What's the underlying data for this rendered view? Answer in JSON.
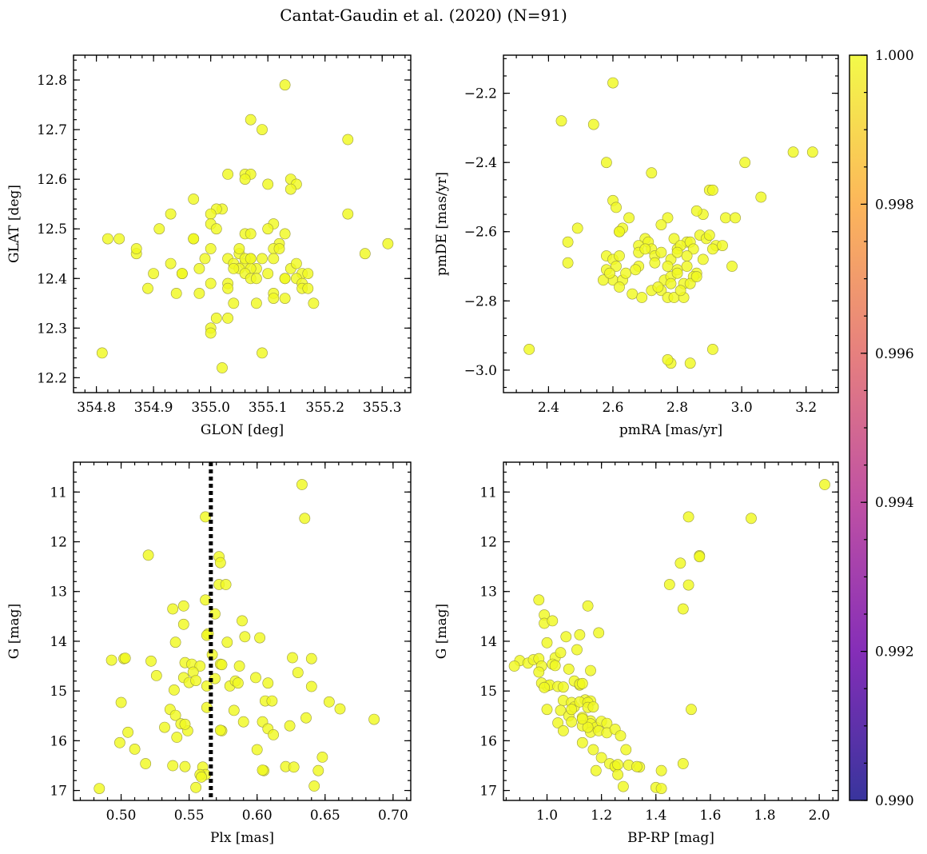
{
  "title": "Cantat-Gaudin et al. (2020) (N=91)",
  "colors": {
    "point": "#f0f921",
    "point_edge": "#9a9a40",
    "vline": "#000000",
    "cmap": [
      "#0d0887",
      "#6a00a8",
      "#b12a90",
      "#e16462",
      "#fca636",
      "#f0f921"
    ]
  },
  "colorbar": {
    "min": 0.99,
    "max": 1.0,
    "ticks": [
      0.99,
      0.992,
      0.994,
      0.996,
      0.998,
      1.0
    ],
    "tick_labels": [
      "0.990",
      "0.992",
      "0.994",
      "0.996",
      "0.998",
      "1.000"
    ]
  },
  "chart_data": [
    {
      "id": "glon-glat",
      "type": "scatter",
      "xlabel": "GLON [deg]",
      "ylabel": "GLAT [deg]",
      "xlim": [
        354.76,
        355.35
      ],
      "ylim": [
        12.17,
        12.85
      ],
      "yinvert": false,
      "xticks": [
        354.8,
        354.9,
        355.0,
        355.1,
        355.2,
        355.3
      ],
      "xtick_labels": [
        "354.8",
        "354.9",
        "355.0",
        "355.1",
        "355.2",
        "355.3"
      ],
      "xminor": 0.02,
      "yticks": [
        12.2,
        12.3,
        12.4,
        12.5,
        12.6,
        12.7,
        12.8
      ],
      "ytick_labels": [
        "12.2",
        "12.3",
        "12.4",
        "12.5",
        "12.6",
        "12.7",
        "12.8"
      ],
      "yminor": 0.02,
      "x": [
        355.13,
        355.07,
        355.09,
        355.24,
        355.03,
        355.06,
        355.07,
        355.06,
        355.1,
        355.14,
        355.15,
        355.14,
        354.97,
        355.02,
        355.01,
        355.0,
        355.24,
        354.93,
        355.11,
        355.13,
        355.0,
        354.91,
        355.06,
        355.07,
        355.01,
        354.97,
        355.12,
        354.82,
        354.84,
        355.31,
        355.0,
        355.11,
        355.12,
        355.05,
        355.27,
        354.87,
        355.07,
        355.11,
        354.87,
        355.03,
        355.06,
        355.04,
        355.08,
        354.93,
        354.98,
        355.05,
        355.07,
        354.9,
        355.06,
        355.1,
        355.07,
        355.14,
        355.16,
        355.17,
        355.15,
        354.95,
        355.08,
        355.13,
        355.03,
        354.89,
        355.16,
        355.0,
        355.03,
        355.16,
        354.94,
        354.98,
        355.11,
        355.18,
        355.08,
        355.04,
        355.11,
        355.01,
        355.03,
        355.0,
        355.09,
        354.81,
        355.0,
        355.02,
        355.09,
        355.06,
        355.13,
        355.07,
        355.1,
        354.97,
        354.95,
        355.15,
        355.05,
        355.13,
        354.99,
        355.04,
        355.17
      ],
      "y": [
        12.79,
        12.72,
        12.7,
        12.68,
        12.61,
        12.61,
        12.61,
        12.6,
        12.59,
        12.6,
        12.59,
        12.58,
        12.56,
        12.54,
        12.54,
        12.53,
        12.53,
        12.53,
        12.51,
        12.49,
        12.51,
        12.5,
        12.49,
        12.49,
        12.5,
        12.48,
        12.47,
        12.48,
        12.48,
        12.47,
        12.46,
        12.46,
        12.46,
        12.45,
        12.45,
        12.45,
        12.44,
        12.44,
        12.46,
        12.44,
        12.43,
        12.43,
        12.42,
        12.43,
        12.42,
        12.42,
        12.42,
        12.41,
        12.41,
        12.41,
        12.4,
        12.42,
        12.41,
        12.41,
        12.4,
        12.41,
        12.4,
        12.4,
        12.39,
        12.38,
        12.39,
        12.39,
        12.38,
        12.38,
        12.37,
        12.37,
        12.37,
        12.35,
        12.35,
        12.35,
        12.36,
        12.32,
        12.32,
        12.3,
        12.25,
        12.25,
        12.29,
        12.22,
        12.44,
        12.44,
        12.4,
        12.44,
        12.5,
        12.48,
        12.41,
        12.43,
        12.46,
        12.36,
        12.44,
        12.42,
        12.38
      ]
    },
    {
      "id": "pmra-pmde",
      "type": "scatter",
      "xlabel": "pmRA [mas/yr]",
      "ylabel": "pmDE [mas/yr]",
      "xlim": [
        2.26,
        3.3
      ],
      "ylim": [
        -3.065,
        -2.09
      ],
      "yinvert": false,
      "xticks": [
        2.4,
        2.6,
        2.8,
        3.0,
        3.2
      ],
      "xtick_labels": [
        "2.4",
        "2.6",
        "2.8",
        "3.0",
        "3.2"
      ],
      "xminor": 0.05,
      "yticks": [
        -3.0,
        -2.8,
        -2.6,
        -2.4,
        -2.2
      ],
      "ytick_labels": [
        "−3.0",
        "−2.8",
        "−2.6",
        "−2.4",
        "−2.2"
      ],
      "yminor": 0.05,
      "x": [
        2.6,
        2.44,
        2.54,
        2.58,
        2.72,
        3.01,
        3.16,
        3.22,
        2.6,
        2.61,
        2.9,
        2.91,
        3.06,
        2.88,
        2.86,
        2.95,
        2.98,
        2.77,
        2.75,
        2.65,
        2.49,
        2.62,
        2.63,
        2.62,
        2.7,
        2.71,
        2.68,
        2.72,
        2.79,
        2.83,
        2.8,
        2.81,
        2.84,
        2.85,
        2.87,
        2.89,
        2.9,
        2.92,
        2.46,
        2.58,
        2.6,
        2.62,
        2.68,
        2.7,
        2.73,
        2.75,
        2.78,
        2.8,
        2.83,
        2.88,
        2.91,
        2.94,
        2.97,
        2.46,
        2.58,
        2.61,
        2.68,
        2.73,
        2.77,
        2.76,
        2.78,
        2.8,
        2.83,
        2.86,
        2.6,
        2.63,
        2.64,
        2.67,
        2.75,
        2.78,
        2.82,
        2.85,
        2.62,
        2.66,
        2.69,
        2.72,
        2.74,
        2.77,
        2.79,
        2.8,
        2.82,
        2.84,
        2.86,
        2.57,
        2.59,
        2.34,
        2.78,
        2.77,
        2.84,
        2.91,
        2.81
      ],
      "y": [
        -2.17,
        -2.28,
        -2.29,
        -2.4,
        -2.43,
        -2.4,
        -2.37,
        -2.37,
        -2.51,
        -2.53,
        -2.48,
        -2.48,
        -2.5,
        -2.55,
        -2.54,
        -2.56,
        -2.56,
        -2.56,
        -2.58,
        -2.56,
        -2.59,
        -2.6,
        -2.59,
        -2.6,
        -2.62,
        -2.63,
        -2.64,
        -2.65,
        -2.62,
        -2.63,
        -2.65,
        -2.64,
        -2.63,
        -2.65,
        -2.61,
        -2.62,
        -2.61,
        -2.64,
        -2.63,
        -2.67,
        -2.68,
        -2.67,
        -2.66,
        -2.65,
        -2.67,
        -2.66,
        -2.68,
        -2.66,
        -2.67,
        -2.68,
        -2.65,
        -2.64,
        -2.7,
        -2.69,
        -2.71,
        -2.7,
        -2.7,
        -2.69,
        -2.7,
        -2.74,
        -2.73,
        -2.71,
        -2.7,
        -2.72,
        -2.74,
        -2.74,
        -2.72,
        -2.71,
        -2.77,
        -2.75,
        -2.75,
        -2.73,
        -2.76,
        -2.78,
        -2.79,
        -2.77,
        -2.76,
        -2.79,
        -2.79,
        -2.72,
        -2.79,
        -2.75,
        -2.73,
        -2.74,
        -2.72,
        -2.94,
        -2.98,
        -2.97,
        -2.98,
        -2.94,
        -2.77
      ]
    },
    {
      "id": "plx-g",
      "type": "scatter",
      "xlabel": "Plx [mas]",
      "ylabel": "G [mag]",
      "xlim": [
        0.465,
        0.713
      ],
      "ylim": [
        17.2,
        10.4
      ],
      "yinvert": true,
      "xticks": [
        0.5,
        0.55,
        0.6,
        0.65,
        0.7
      ],
      "xtick_labels": [
        "0.50",
        "0.55",
        "0.60",
        "0.65",
        "0.70"
      ],
      "xminor": 0.01,
      "yticks": [
        11,
        12,
        13,
        14,
        15,
        16,
        17
      ],
      "ytick_labels": [
        "11",
        "12",
        "13",
        "14",
        "15",
        "16",
        "17"
      ],
      "yminor": 0.2,
      "vline": 0.566,
      "x": [
        0.633,
        0.635,
        0.562,
        0.52,
        0.572,
        0.573,
        0.572,
        0.577,
        0.546,
        0.538,
        0.562,
        0.569,
        0.546,
        0.589,
        0.54,
        0.578,
        0.591,
        0.564,
        0.563,
        0.602,
        0.493,
        0.502,
        0.503,
        0.522,
        0.547,
        0.552,
        0.558,
        0.567,
        0.573,
        0.574,
        0.587,
        0.626,
        0.64,
        0.553,
        0.546,
        0.539,
        0.526,
        0.55,
        0.555,
        0.563,
        0.569,
        0.58,
        0.584,
        0.586,
        0.608,
        0.599,
        0.63,
        0.64,
        0.5,
        0.606,
        0.611,
        0.653,
        0.661,
        0.536,
        0.563,
        0.583,
        0.549,
        0.54,
        0.574,
        0.59,
        0.604,
        0.624,
        0.636,
        0.686,
        0.544,
        0.532,
        0.547,
        0.541,
        0.505,
        0.608,
        0.612,
        0.573,
        0.499,
        0.51,
        0.518,
        0.6,
        0.547,
        0.538,
        0.56,
        0.562,
        0.558,
        0.559,
        0.605,
        0.621,
        0.627,
        0.648,
        0.604,
        0.484,
        0.555,
        0.642,
        0.645
      ],
      "y": [
        10.85,
        11.53,
        11.5,
        12.27,
        12.3,
        12.42,
        12.86,
        12.86,
        13.29,
        13.35,
        13.17,
        13.45,
        13.66,
        13.59,
        14.02,
        14.02,
        13.91,
        13.85,
        13.88,
        13.93,
        14.38,
        14.35,
        14.34,
        14.4,
        14.43,
        14.46,
        14.5,
        14.27,
        14.46,
        14.47,
        14.5,
        14.33,
        14.35,
        14.62,
        14.73,
        14.98,
        14.69,
        14.83,
        14.79,
        14.9,
        14.75,
        14.9,
        14.8,
        14.84,
        14.84,
        14.73,
        14.63,
        14.91,
        15.23,
        15.2,
        15.2,
        15.22,
        15.36,
        15.37,
        15.33,
        15.39,
        15.8,
        15.49,
        15.8,
        15.62,
        15.62,
        15.7,
        15.54,
        15.57,
        15.66,
        15.73,
        15.67,
        15.93,
        15.83,
        15.76,
        15.88,
        15.79,
        16.04,
        16.17,
        16.46,
        16.18,
        16.52,
        16.5,
        16.53,
        16.68,
        16.68,
        16.73,
        16.6,
        16.52,
        16.53,
        16.33,
        16.59,
        16.96,
        16.94,
        16.91,
        16.6
      ]
    },
    {
      "id": "bprp-g",
      "type": "scatter",
      "xlabel": "BP-RP [mag]",
      "ylabel": "G [mag]",
      "xlim": [
        0.84,
        2.07
      ],
      "ylim": [
        17.2,
        10.4
      ],
      "yinvert": true,
      "xticks": [
        1.0,
        1.2,
        1.4,
        1.6,
        1.8,
        2.0
      ],
      "xtick_labels": [
        "1.0",
        "1.2",
        "1.4",
        "1.6",
        "1.8",
        "2.0"
      ],
      "xminor": 0.05,
      "yticks": [
        11,
        12,
        13,
        14,
        15,
        16,
        17
      ],
      "ytick_labels": [
        "11",
        "12",
        "13",
        "14",
        "15",
        "16",
        "17"
      ],
      "yminor": 0.2,
      "x": [
        2.02,
        1.52,
        1.75,
        1.56,
        1.56,
        1.49,
        1.52,
        1.45,
        1.5,
        0.97,
        0.99,
        1.15,
        0.99,
        1.02,
        1.07,
        1.12,
        1.19,
        0.9,
        0.93,
        0.95,
        0.97,
        0.98,
        1.0,
        1.03,
        1.05,
        1.02,
        1.08,
        1.1,
        1.12,
        1.12,
        1.13,
        1.14,
        1.16,
        1.0,
        0.98,
        1.01,
        1.04,
        1.06,
        1.09,
        1.1,
        1.12,
        1.15,
        1.15,
        1.17,
        1.53,
        1.05,
        1.08,
        1.13,
        1.16,
        1.16,
        1.18,
        1.2,
        1.22,
        1.16,
        1.04,
        1.06,
        1.09,
        1.13,
        1.15,
        1.19,
        1.22,
        1.25,
        1.27,
        1.13,
        1.17,
        1.2,
        1.25,
        1.29,
        1.3,
        1.18,
        1.23,
        1.25,
        1.26,
        1.34,
        1.33,
        1.5,
        1.42,
        1.28,
        1.4,
        1.42,
        1.26,
        0.88,
        0.97,
        0.99,
        1.06,
        1.09,
        1.13,
        1.0,
        1.03,
        1.11,
        1.16
      ],
      "y": [
        10.85,
        11.5,
        11.53,
        12.28,
        12.3,
        12.43,
        12.87,
        12.86,
        13.35,
        13.17,
        13.47,
        13.29,
        13.64,
        13.59,
        13.91,
        13.87,
        13.83,
        14.39,
        14.44,
        14.37,
        14.35,
        14.5,
        14.03,
        14.33,
        14.23,
        14.46,
        14.56,
        14.8,
        14.88,
        14.86,
        14.85,
        15.18,
        15.2,
        14.9,
        14.84,
        14.88,
        14.91,
        15.19,
        15.23,
        15.32,
        15.22,
        15.23,
        15.33,
        15.32,
        15.37,
        15.39,
        15.5,
        15.53,
        15.6,
        15.66,
        15.73,
        15.61,
        15.65,
        15.83,
        15.64,
        15.8,
        15.62,
        15.7,
        15.73,
        15.8,
        15.84,
        15.77,
        15.9,
        16.04,
        16.18,
        16.34,
        16.51,
        16.18,
        16.49,
        16.6,
        16.46,
        16.52,
        16.68,
        16.53,
        16.52,
        16.46,
        16.6,
        16.92,
        16.94,
        16.96,
        16.48,
        14.5,
        14.62,
        14.93,
        14.92,
        15.37,
        15.56,
        15.37,
        14.49,
        14.17,
        14.59
      ]
    }
  ]
}
